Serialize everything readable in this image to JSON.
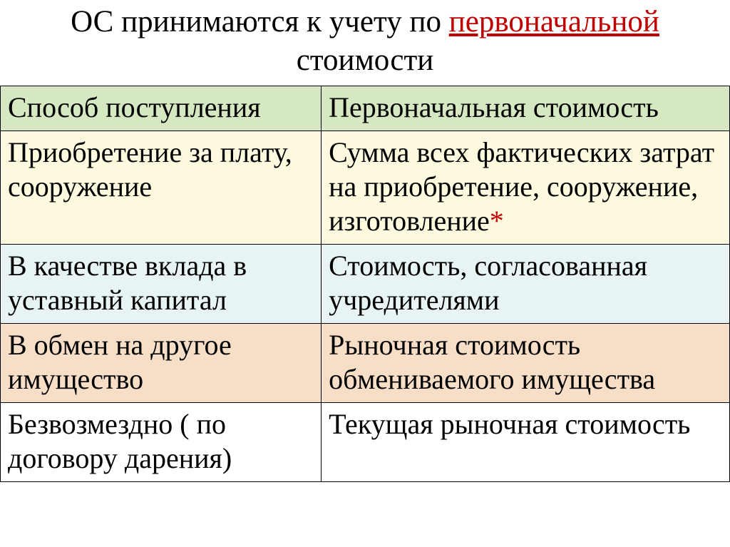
{
  "title": {
    "prefix": "ОС принимаются к учету по ",
    "highlight": "первоначальной",
    "suffix": " стоимости"
  },
  "table": {
    "header": {
      "col1": "Способ поступления",
      "col2": "Первоначальная стоимость"
    },
    "rows": [
      {
        "col1": "Приобретение за плату, сооружение",
        "col2": "Сумма всех фактических затрат на приобретение, сооружение, изготовление",
        "col2_mark": "*"
      },
      {
        "col1": "В качестве вклада в уставный капитал",
        "col2": "Стоимость, согласованная учредителями"
      },
      {
        "col1": "В обмен на другое имущество",
        "col2": "Рыночная стоимость обмениваемого имущества"
      },
      {
        "col1": "Безвозмездно ( по договору дарения)",
        "col2": "Текущая рыночная стоимость"
      }
    ]
  },
  "styling": {
    "title_fontsize": 43,
    "cell_fontsize": 40,
    "font_family": "Times New Roman",
    "title_highlight_color": "#c00000",
    "asterisk_color": "#c00000",
    "border_color": "#000000",
    "row_backgrounds": {
      "header": "#d5e8c2",
      "row1": "#fdfadf",
      "row2": "#e8f4f4",
      "row3": "#f6dfc6",
      "row4": "#ffffff"
    },
    "col1_width_pct": 44,
    "col2_width_pct": 56
  }
}
